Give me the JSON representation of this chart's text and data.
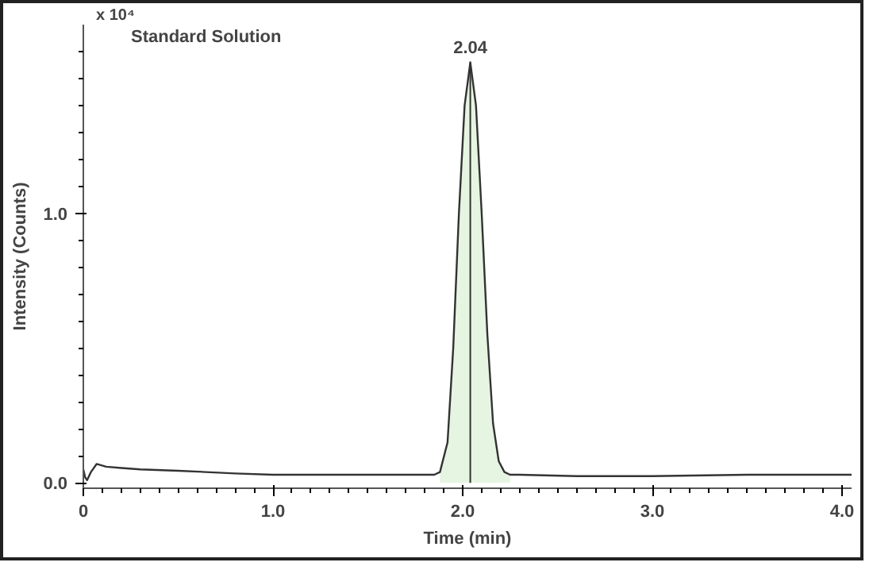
{
  "chart_data": {
    "type": "line",
    "title": "Standard Solution",
    "xlabel": "Time (min)",
    "ylabel": "Intensity (Counts)",
    "annotations": [
      "x 10⁴",
      {
        "text": "2.04",
        "x": 2.04,
        "y": 1.56
      }
    ],
    "xlim": [
      0,
      4.05
    ],
    "ylim": [
      -0.02,
      1.7
    ],
    "xticks": [
      {
        "value": 0,
        "label": "0"
      },
      {
        "value": 1,
        "label": "1.0"
      },
      {
        "value": 2,
        "label": "2.0"
      },
      {
        "value": 3,
        "label": "3.0"
      },
      {
        "value": 4,
        "label": "4.0"
      }
    ],
    "yticks": [
      {
        "value": 0,
        "label": "0.0"
      },
      {
        "value": 1,
        "label": "1.0"
      }
    ],
    "grid": false,
    "marker": "none",
    "line_style": "solid",
    "ref_lines": [
      {
        "axis": "x",
        "value": 2.04,
        "label": null,
        "color": "#333333"
      }
    ],
    "series": [
      {
        "type": "area",
        "color": "#e6f5e1",
        "x": [
          1.88,
          1.92,
          1.95,
          1.98,
          2.01,
          2.04,
          2.07,
          2.1,
          2.13,
          2.16,
          2.19,
          2.22,
          2.25
        ],
        "values": [
          0.04,
          0.15,
          0.5,
          1.0,
          1.4,
          1.56,
          1.4,
          1.0,
          0.55,
          0.22,
          0.08,
          0.04,
          0.03
        ]
      },
      {
        "color": "#333333",
        "x": [
          0,
          0.01,
          0.02,
          0.04,
          0.07,
          0.12,
          0.2,
          0.3,
          0.5,
          0.8,
          1.0,
          1.3,
          1.5,
          1.7,
          1.85,
          1.88,
          1.92,
          1.95,
          1.98,
          2.01,
          2.04,
          2.07,
          2.1,
          2.13,
          2.16,
          2.19,
          2.22,
          2.25,
          2.3,
          2.6,
          3.0,
          3.5,
          4.05
        ],
        "values": [
          0.05,
          0.02,
          0.01,
          0.04,
          0.07,
          0.06,
          0.055,
          0.05,
          0.045,
          0.035,
          0.03,
          0.03,
          0.03,
          0.03,
          0.03,
          0.04,
          0.15,
          0.5,
          1.0,
          1.4,
          1.56,
          1.4,
          1.0,
          0.55,
          0.22,
          0.08,
          0.04,
          0.03,
          0.03,
          0.025,
          0.025,
          0.03,
          0.03
        ]
      }
    ]
  }
}
